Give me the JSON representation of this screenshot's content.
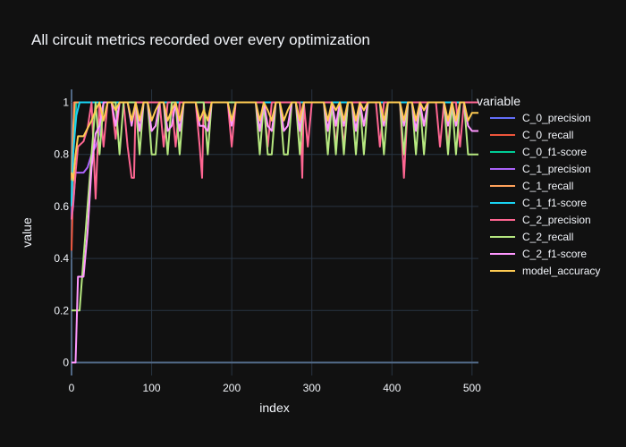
{
  "chart_data": {
    "type": "line",
    "title": "All circuit metrics recorded over every optimization",
    "xlabel": "index",
    "ylabel": "value",
    "xlim": [
      0,
      508
    ],
    "ylim": [
      -0.05,
      1.05
    ],
    "xticks": [
      0,
      100,
      200,
      300,
      400,
      500
    ],
    "yticks": [
      0,
      0.2,
      0.4,
      0.6,
      0.8,
      1
    ],
    "ytick_labels": [
      "0",
      "0.2",
      "0.4",
      "0.6",
      "0.8",
      "1"
    ],
    "legend_title": "variable",
    "legend_position": "right",
    "grid": true,
    "theme": {
      "background": "#111111",
      "grid_color": "#283442",
      "zero_line_color": "#506784",
      "text_color": "#f2f5fa"
    },
    "series": [
      {
        "name": "C_0_precision",
        "color": "#636efa",
        "x": [
          0,
          2,
          4,
          6,
          10,
          20,
          30,
          500,
          508
        ],
        "y": [
          0.55,
          0.8,
          0.9,
          1.0,
          1.0,
          1.0,
          1.0,
          1.0,
          1.0
        ]
      },
      {
        "name": "C_0_recall",
        "color": "#EF553B",
        "x": [
          0,
          1,
          2,
          3,
          4,
          5,
          10,
          500,
          508
        ],
        "y": [
          0.43,
          0.55,
          0.8,
          1.0,
          1.0,
          1.0,
          1.0,
          1.0,
          1.0
        ]
      },
      {
        "name": "C_0_f1-score",
        "color": "#00cc96",
        "x": [
          0,
          2,
          4,
          6,
          10,
          20,
          30,
          500,
          508
        ],
        "y": [
          0.6,
          0.85,
          0.95,
          1.0,
          1.0,
          1.0,
          1.0,
          1.0,
          1.0
        ]
      },
      {
        "name": "C_1_precision",
        "color": "#ab63fa",
        "x": [
          0,
          2,
          5,
          8,
          15,
          20,
          25,
          30,
          35,
          40,
          500,
          508
        ],
        "y": [
          0.55,
          0.6,
          0.73,
          0.73,
          0.73,
          0.75,
          0.8,
          0.83,
          0.88,
          1.0,
          1.0,
          1.0
        ]
      },
      {
        "name": "C_1_recall",
        "color": "#FFA15A",
        "x": [
          0,
          2,
          4,
          6,
          10,
          20,
          30,
          500,
          508
        ],
        "y": [
          0.7,
          0.9,
          1.0,
          1.0,
          1.0,
          1.0,
          1.0,
          1.0,
          1.0
        ]
      },
      {
        "name": "C_1_f1-score",
        "color": "#19d3f3",
        "x": [
          0,
          2,
          4,
          6,
          10,
          20,
          30,
          500,
          508
        ],
        "y": [
          0.6,
          0.8,
          0.88,
          0.95,
          1.0,
          1.0,
          1.0,
          1.0,
          1.0
        ]
      },
      {
        "name": "C_2_precision",
        "color": "#FF6692",
        "x": [
          0,
          3,
          5,
          8,
          15,
          20,
          25,
          30,
          35,
          40,
          45,
          50,
          55,
          60,
          65,
          70,
          75,
          78,
          80,
          85,
          90,
          95,
          100,
          105,
          110,
          115,
          120,
          125,
          130,
          135,
          140,
          145,
          150,
          155,
          160,
          163,
          165,
          170,
          175,
          180,
          185,
          190,
          195,
          200,
          205,
          210,
          215,
          220,
          225,
          230,
          235,
          240,
          245,
          250,
          255,
          260,
          265,
          270,
          275,
          280,
          285,
          288,
          290,
          295,
          300,
          305,
          310,
          315,
          320,
          325,
          330,
          335,
          340,
          345,
          350,
          355,
          360,
          365,
          370,
          375,
          380,
          385,
          390,
          395,
          400,
          405,
          410,
          415,
          420,
          425,
          430,
          435,
          440,
          445,
          450,
          455,
          460,
          465,
          470,
          475,
          480,
          485,
          490,
          495,
          500,
          505,
          508
        ],
        "y": [
          0.55,
          0.65,
          0.73,
          0.83,
          0.85,
          0.9,
          1.0,
          0.63,
          1.0,
          0.83,
          1.0,
          1.0,
          0.86,
          1.0,
          1.0,
          0.83,
          0.71,
          0.71,
          1.0,
          1.0,
          1.0,
          1.0,
          1.0,
          1.0,
          1.0,
          0.83,
          1.0,
          1.0,
          0.83,
          1.0,
          1.0,
          1.0,
          1.0,
          1.0,
          0.83,
          0.71,
          1.0,
          1.0,
          1.0,
          1.0,
          1.0,
          1.0,
          1.0,
          0.83,
          1.0,
          1.0,
          1.0,
          1.0,
          1.0,
          1.0,
          1.0,
          1.0,
          0.83,
          1.0,
          1.0,
          1.0,
          1.0,
          1.0,
          1.0,
          1.0,
          1.0,
          0.71,
          1.0,
          0.83,
          1.0,
          1.0,
          1.0,
          1.0,
          1.0,
          1.0,
          0.83,
          1.0,
          0.83,
          1.0,
          1.0,
          1.0,
          1.0,
          1.0,
          1.0,
          1.0,
          1.0,
          0.83,
          1.0,
          1.0,
          1.0,
          1.0,
          1.0,
          0.71,
          1.0,
          1.0,
          1.0,
          1.0,
          1.0,
          1.0,
          1.0,
          1.0,
          0.83,
          1.0,
          0.83,
          1.0,
          1.0,
          0.83,
          1.0,
          1.0,
          1.0,
          1.0,
          1.0
        ]
      },
      {
        "name": "C_2_recall",
        "color": "#B6E880",
        "x": [
          0,
          5,
          10,
          15,
          20,
          25,
          30,
          35,
          40,
          45,
          50,
          55,
          60,
          65,
          70,
          75,
          80,
          85,
          90,
          95,
          100,
          105,
          110,
          115,
          120,
          125,
          130,
          135,
          140,
          145,
          150,
          155,
          160,
          165,
          170,
          175,
          180,
          185,
          190,
          195,
          200,
          205,
          210,
          215,
          220,
          225,
          230,
          235,
          240,
          245,
          250,
          255,
          260,
          265,
          270,
          275,
          280,
          285,
          290,
          295,
          300,
          305,
          310,
          315,
          320,
          325,
          330,
          335,
          340,
          345,
          350,
          355,
          360,
          365,
          370,
          375,
          380,
          385,
          390,
          395,
          400,
          405,
          410,
          415,
          420,
          425,
          430,
          435,
          440,
          445,
          450,
          455,
          460,
          465,
          470,
          475,
          480,
          485,
          490,
          495,
          500,
          505,
          508
        ],
        "y": [
          0.2,
          0.2,
          0.2,
          0.4,
          0.6,
          0.8,
          1.0,
          0.8,
          1.0,
          1.0,
          1.0,
          1.0,
          0.8,
          1.0,
          1.0,
          1.0,
          1.0,
          0.8,
          1.0,
          1.0,
          0.8,
          0.8,
          1.0,
          1.0,
          0.8,
          1.0,
          1.0,
          0.8,
          1.0,
          1.0,
          1.0,
          1.0,
          1.0,
          1.0,
          0.8,
          1.0,
          1.0,
          1.0,
          1.0,
          1.0,
          1.0,
          1.0,
          1.0,
          1.0,
          1.0,
          1.0,
          1.0,
          0.8,
          1.0,
          0.8,
          0.8,
          1.0,
          1.0,
          0.8,
          0.8,
          1.0,
          1.0,
          0.8,
          1.0,
          1.0,
          1.0,
          1.0,
          1.0,
          1.0,
          0.8,
          1.0,
          0.8,
          1.0,
          0.8,
          1.0,
          1.0,
          0.8,
          1.0,
          0.8,
          1.0,
          1.0,
          1.0,
          1.0,
          0.8,
          1.0,
          1.0,
          1.0,
          1.0,
          0.8,
          1.0,
          1.0,
          0.8,
          1.0,
          0.8,
          1.0,
          1.0,
          1.0,
          1.0,
          1.0,
          0.8,
          1.0,
          0.8,
          1.0,
          1.0,
          0.8,
          0.8,
          0.8,
          0.8
        ]
      },
      {
        "name": "C_2_f1-score",
        "color": "#FF97FF",
        "x": [
          0,
          5,
          8,
          10,
          15,
          20,
          25,
          30,
          35,
          40,
          45,
          50,
          55,
          60,
          65,
          70,
          75,
          80,
          85,
          90,
          95,
          100,
          105,
          110,
          115,
          120,
          125,
          130,
          135,
          140,
          145,
          150,
          155,
          160,
          165,
          170,
          175,
          180,
          185,
          190,
          195,
          200,
          205,
          210,
          215,
          220,
          225,
          230,
          235,
          240,
          245,
          250,
          255,
          260,
          265,
          270,
          275,
          280,
          285,
          290,
          295,
          300,
          305,
          310,
          315,
          320,
          325,
          330,
          335,
          340,
          345,
          350,
          355,
          360,
          365,
          370,
          375,
          380,
          385,
          390,
          395,
          400,
          405,
          410,
          415,
          420,
          425,
          430,
          435,
          440,
          445,
          450,
          455,
          460,
          465,
          470,
          475,
          480,
          485,
          490,
          495,
          500,
          505,
          508
        ],
        "y": [
          0.0,
          0.0,
          0.33,
          0.33,
          0.33,
          0.5,
          0.75,
          0.88,
          0.91,
          1.0,
          1.0,
          1.0,
          0.91,
          1.0,
          1.0,
          1.0,
          0.91,
          1.0,
          0.89,
          1.0,
          1.0,
          0.89,
          0.91,
          1.0,
          1.0,
          0.89,
          0.91,
          1.0,
          0.89,
          1.0,
          1.0,
          1.0,
          1.0,
          0.91,
          0.91,
          0.89,
          1.0,
          1.0,
          1.0,
          1.0,
          1.0,
          0.91,
          1.0,
          1.0,
          1.0,
          1.0,
          1.0,
          1.0,
          0.89,
          1.0,
          0.91,
          0.89,
          1.0,
          1.0,
          0.89,
          0.91,
          1.0,
          1.0,
          0.89,
          1.0,
          1.0,
          1.0,
          1.0,
          1.0,
          1.0,
          0.89,
          1.0,
          0.91,
          1.0,
          0.91,
          1.0,
          1.0,
          0.89,
          1.0,
          0.91,
          1.0,
          1.0,
          1.0,
          1.0,
          0.91,
          1.0,
          1.0,
          1.0,
          1.0,
          0.91,
          1.0,
          1.0,
          0.89,
          1.0,
          0.91,
          1.0,
          1.0,
          1.0,
          1.0,
          1.0,
          0.91,
          1.0,
          0.91,
          1.0,
          1.0,
          0.91,
          0.89,
          0.89,
          0.89
        ]
      },
      {
        "name": "model_accuracy",
        "color": "#FECB52",
        "x": [
          0,
          2,
          5,
          8,
          15,
          20,
          25,
          30,
          35,
          40,
          45,
          50,
          55,
          60,
          65,
          70,
          75,
          80,
          85,
          90,
          95,
          100,
          105,
          110,
          115,
          120,
          125,
          130,
          135,
          140,
          145,
          150,
          155,
          160,
          165,
          170,
          175,
          180,
          185,
          190,
          195,
          200,
          205,
          210,
          215,
          220,
          225,
          230,
          235,
          240,
          245,
          250,
          255,
          260,
          265,
          270,
          275,
          280,
          285,
          290,
          295,
          300,
          305,
          310,
          315,
          320,
          325,
          330,
          335,
          340,
          345,
          350,
          355,
          360,
          365,
          370,
          375,
          380,
          385,
          390,
          395,
          400,
          405,
          410,
          415,
          420,
          425,
          430,
          435,
          440,
          445,
          450,
          455,
          460,
          465,
          470,
          475,
          480,
          485,
          490,
          495,
          500,
          505,
          508
        ],
        "y": [
          0.73,
          0.7,
          0.8,
          0.87,
          0.87,
          0.9,
          0.93,
          0.97,
          1.0,
          0.93,
          1.0,
          1.0,
          0.97,
          1.0,
          1.0,
          1.0,
          0.93,
          1.0,
          0.93,
          1.0,
          1.0,
          0.93,
          0.97,
          1.0,
          1.0,
          0.93,
          0.97,
          1.0,
          0.93,
          1.0,
          1.0,
          1.0,
          1.0,
          0.93,
          0.97,
          0.93,
          1.0,
          1.0,
          1.0,
          1.0,
          1.0,
          0.93,
          1.0,
          1.0,
          1.0,
          1.0,
          1.0,
          1.0,
          0.93,
          1.0,
          0.97,
          0.93,
          1.0,
          1.0,
          0.93,
          0.97,
          1.0,
          1.0,
          0.93,
          1.0,
          1.0,
          1.0,
          1.0,
          1.0,
          1.0,
          0.93,
          1.0,
          0.97,
          1.0,
          0.93,
          1.0,
          1.0,
          0.93,
          1.0,
          0.97,
          1.0,
          1.0,
          1.0,
          1.0,
          0.93,
          1.0,
          1.0,
          1.0,
          1.0,
          0.93,
          1.0,
          1.0,
          0.93,
          1.0,
          0.97,
          1.0,
          1.0,
          1.0,
          1.0,
          1.0,
          0.93,
          1.0,
          0.93,
          1.0,
          1.0,
          0.93,
          0.96,
          0.96,
          0.96
        ]
      }
    ]
  }
}
